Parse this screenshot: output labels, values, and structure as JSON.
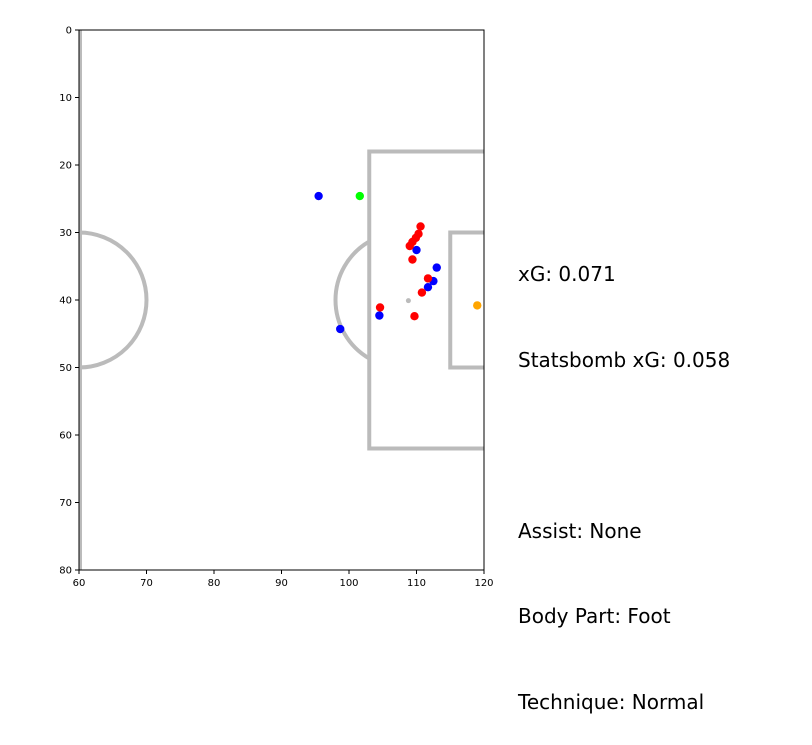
{
  "chart_data": {
    "type": "scatter",
    "xlim": [
      60,
      120
    ],
    "ylim": [
      0,
      80
    ],
    "y_inverted": true,
    "x_ticks": [
      60,
      70,
      80,
      90,
      100,
      110,
      120
    ],
    "y_ticks": [
      0,
      10,
      20,
      30,
      40,
      50,
      60,
      70,
      80
    ],
    "grid": false,
    "pitch_color": "#bbbbbb",
    "series": [
      {
        "color": "#0000ff",
        "points": [
          {
            "x": 95.5,
            "y": 24.6
          },
          {
            "x": 110.0,
            "y": 32.6
          },
          {
            "x": 113.0,
            "y": 35.2
          },
          {
            "x": 112.5,
            "y": 37.2
          },
          {
            "x": 111.7,
            "y": 38.1
          },
          {
            "x": 104.5,
            "y": 42.3
          },
          {
            "x": 98.7,
            "y": 44.3
          }
        ]
      },
      {
        "color": "#ff0000",
        "points": [
          {
            "x": 110.6,
            "y": 29.1
          },
          {
            "x": 110.3,
            "y": 30.2
          },
          {
            "x": 109.9,
            "y": 30.8
          },
          {
            "x": 109.4,
            "y": 31.4
          },
          {
            "x": 109.0,
            "y": 32.0
          },
          {
            "x": 109.4,
            "y": 34.0
          },
          {
            "x": 111.7,
            "y": 36.8
          },
          {
            "x": 110.8,
            "y": 38.9
          },
          {
            "x": 104.6,
            "y": 41.1
          },
          {
            "x": 109.7,
            "y": 42.4
          }
        ]
      },
      {
        "color": "#00ff00",
        "points": [
          {
            "x": 101.6,
            "y": 24.6
          }
        ]
      },
      {
        "color": "#ffa500",
        "points": [
          {
            "x": 119.0,
            "y": 40.8
          }
        ]
      }
    ],
    "pitch_markings": {
      "center_circle": {
        "cx": 60,
        "cy": 40,
        "r": 10
      },
      "penalty_spot": {
        "x": 108.8,
        "y": 40.1
      },
      "penalty_arc": {
        "cx": 108,
        "cy": 40,
        "r": 10
      },
      "penalty_area": {
        "x0": 103,
        "x1": 120,
        "y0": 18,
        "y1": 62
      },
      "six_yard_box": {
        "x0": 115,
        "x1": 120,
        "y0": 30,
        "y1": 50
      }
    }
  },
  "info": {
    "xg": "xG: 0.071",
    "statsbomb_xg": "Statsbomb xG: 0.058",
    "assist": "Assist: None",
    "body_part": "Body Part: Foot",
    "technique": "Technique: Normal"
  }
}
